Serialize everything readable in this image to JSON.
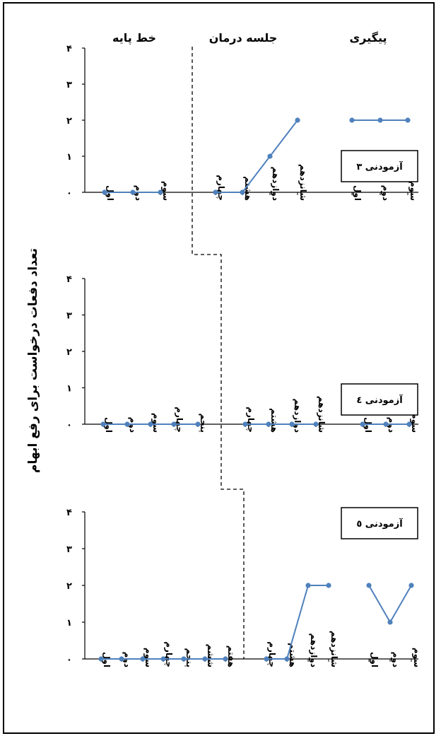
{
  "chart_data": {
    "type": "line",
    "ylabel": "تعداد دفعات درخواست برای رفع ابهام",
    "ylim": [
      0,
      4
    ],
    "y_tick_labels": [
      "۰",
      "۱",
      "۲",
      "۳",
      "۴"
    ],
    "phase_labels": [
      "خط پایه",
      "جلسه درمان",
      "پیگیری"
    ],
    "series_color": "#4f81bd",
    "panels": [
      {
        "name": "آزمودنی ۳",
        "baseline": {
          "sessions": [
            "اول",
            "دوم",
            "سوم"
          ],
          "values": [
            0,
            0,
            0
          ]
        },
        "treatment": {
          "sessions": [
            "چهارم",
            "هشتم",
            "دوازدهم",
            "شانزدهم"
          ],
          "values": [
            0,
            0,
            1,
            2
          ]
        },
        "followup": {
          "sessions": [
            "اول",
            "دوم",
            "سوم"
          ],
          "values": [
            2,
            2,
            2
          ]
        }
      },
      {
        "name": "آزمودنی ٤",
        "baseline": {
          "sessions": [
            "اول",
            "دوم",
            "سوم",
            "چهارم",
            "پنجم"
          ],
          "values": [
            0,
            0,
            0,
            0,
            0
          ]
        },
        "treatment": {
          "sessions": [
            "چهارم",
            "هشتم",
            "دوازدهم",
            "شانزدهم"
          ],
          "values": [
            0,
            0,
            0,
            0
          ]
        },
        "followup": {
          "sessions": [
            "اول",
            "دوم",
            "سوم"
          ],
          "values": [
            0,
            0,
            0
          ]
        }
      },
      {
        "name": "آزمودنی ٥",
        "baseline": {
          "sessions": [
            "اول",
            "دوم",
            "سوم",
            "چهارم",
            "پنجم",
            "ششم",
            "هفتم"
          ],
          "values": [
            0,
            0,
            0,
            0,
            0,
            0,
            0
          ]
        },
        "treatment": {
          "sessions": [
            "چهارم",
            "هشتم",
            "دوازدهم",
            "شانزدهم"
          ],
          "values": [
            0,
            0,
            2,
            2
          ]
        },
        "followup": {
          "sessions": [
            "اول",
            "دوم",
            "سوم"
          ],
          "values": [
            2,
            1,
            2
          ]
        }
      }
    ]
  }
}
